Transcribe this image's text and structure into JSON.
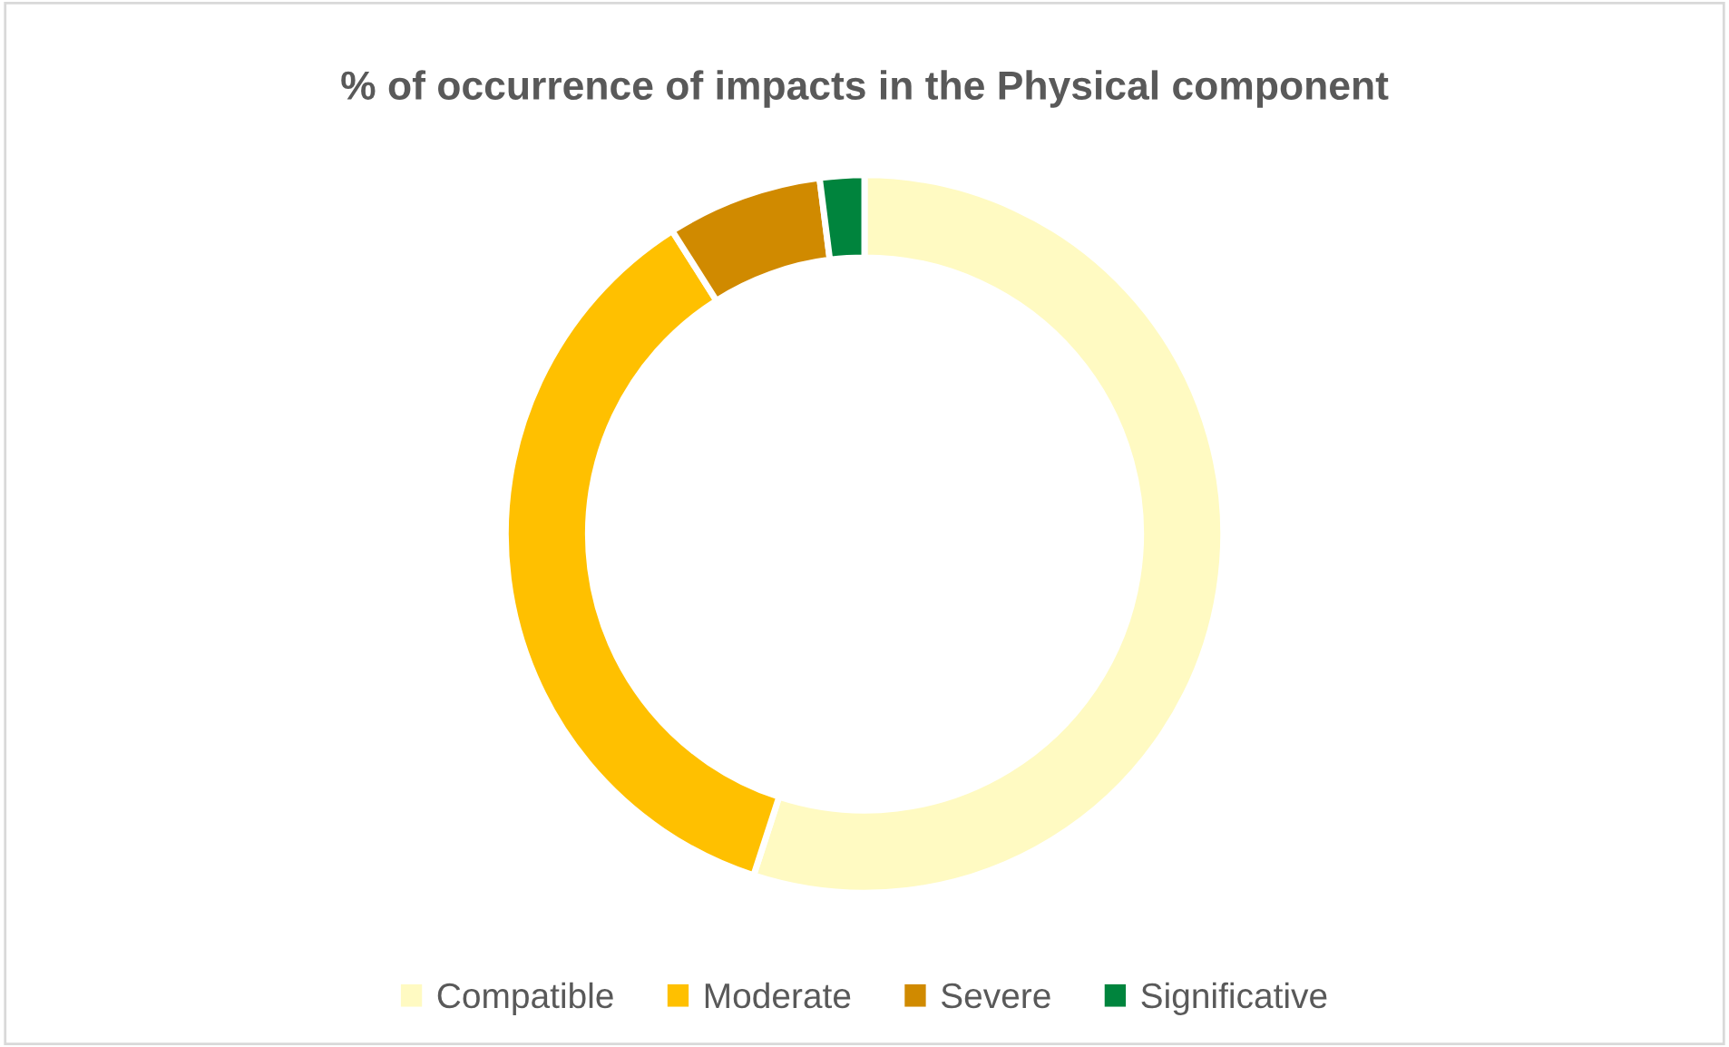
{
  "chart_data": {
    "type": "donut",
    "title": "% of occurrence of impacts in the Physical component",
    "categories": [
      "Compatible",
      "Moderate",
      "Severe",
      "Significative"
    ],
    "values": [
      55,
      36,
      7,
      2
    ],
    "colors": [
      "#fffac2",
      "#ffc000",
      "#d08a00",
      "#00843d"
    ],
    "legend": "bottom"
  }
}
